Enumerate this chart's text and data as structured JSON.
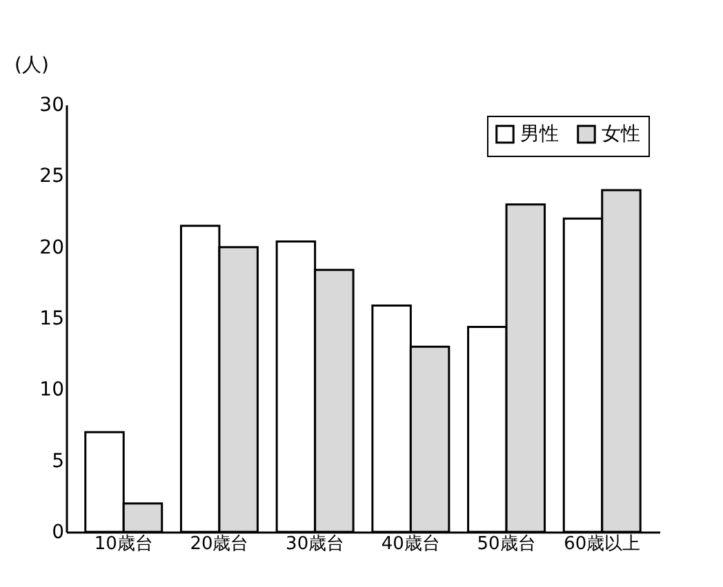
{
  "chart_data": {
    "type": "bar",
    "ylabel": "(人)",
    "categories": [
      "10歳台",
      "20歳台",
      "30歳台",
      "40歳台",
      "50歳台",
      "60歳以上"
    ],
    "series": [
      {
        "name": "男性",
        "color": "#ffffff",
        "values": [
          7,
          21.5,
          20.4,
          15.9,
          14.4,
          22
        ]
      },
      {
        "name": "女性",
        "color": "#d9d9d9",
        "values": [
          2,
          20,
          18.4,
          13,
          23,
          24
        ]
      }
    ],
    "ylim": [
      0,
      30
    ],
    "yticks": [
      0,
      5,
      10,
      15,
      20,
      25,
      30
    ],
    "grid": false,
    "legend": "top right"
  }
}
